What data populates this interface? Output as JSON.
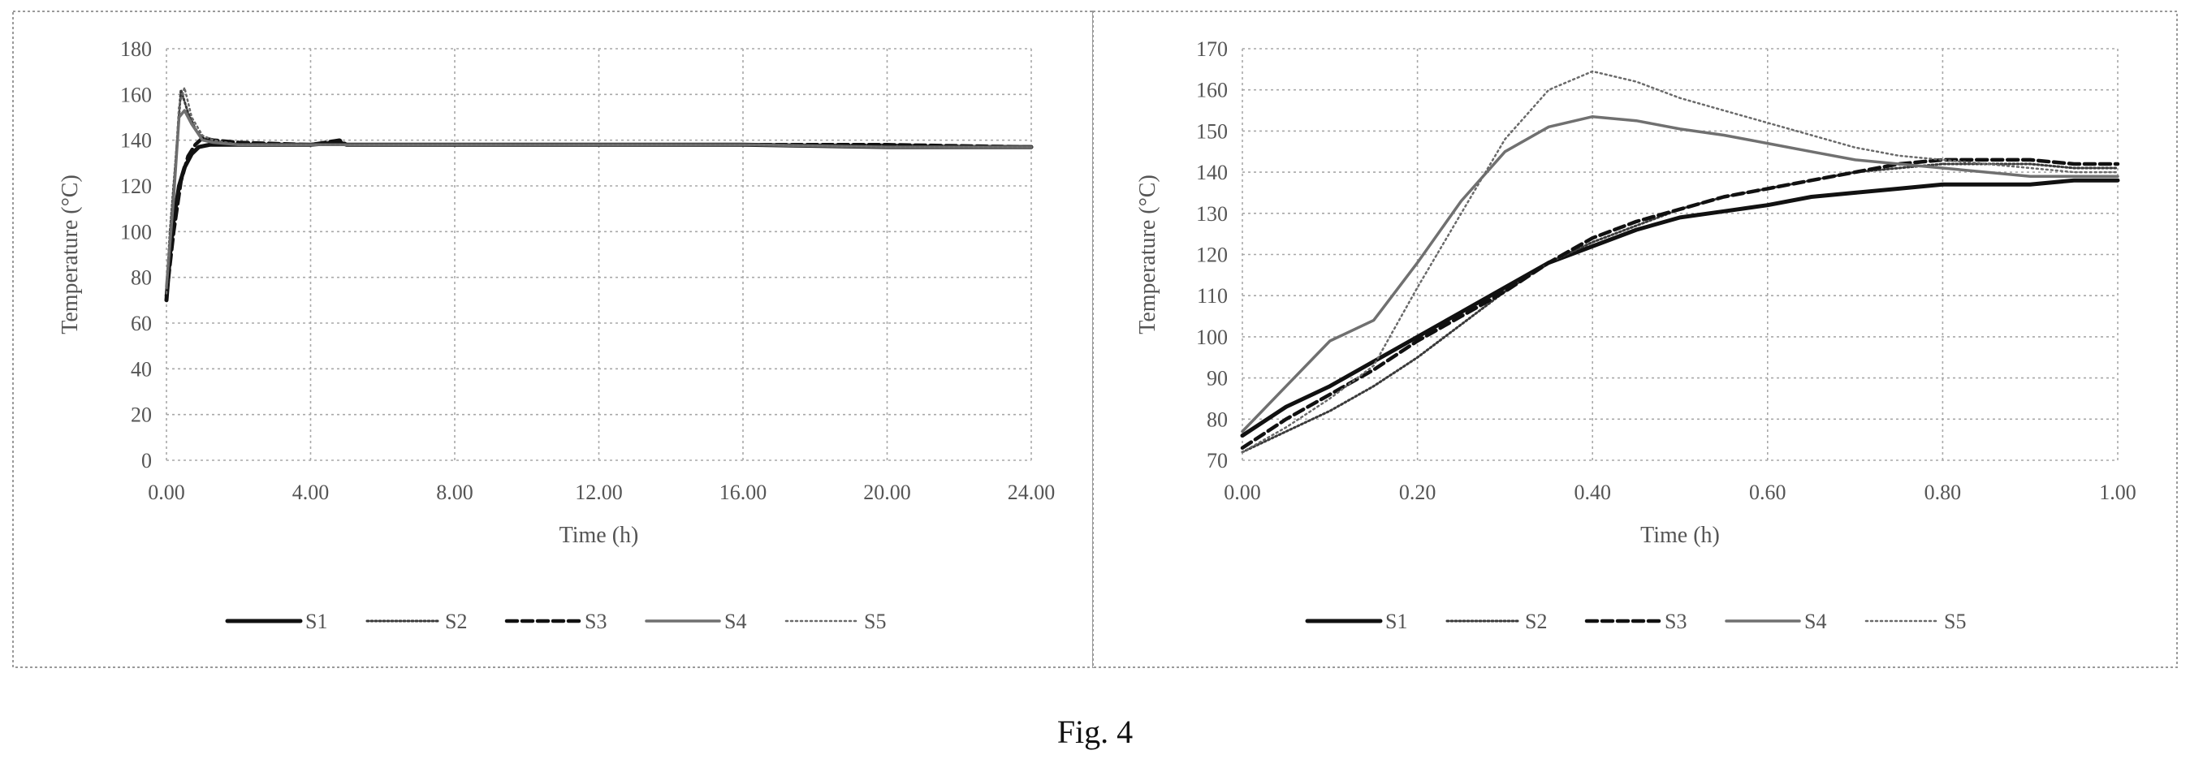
{
  "caption": "Fig. 4",
  "legend_styles": {
    "S1": "s1",
    "S2": "s2",
    "S3": "s3",
    "S4": "s4",
    "S5": "s5"
  },
  "chart_data": [
    {
      "type": "line",
      "title": "",
      "xlabel": "Time (h)",
      "ylabel": "Temperature (°C)",
      "xlim": [
        0,
        24
      ],
      "ylim": [
        0,
        180
      ],
      "xticks": [
        0,
        4,
        8,
        12,
        16,
        20,
        24
      ],
      "xtick_labels": [
        "0.00",
        "4.00",
        "8.00",
        "12.00",
        "16.00",
        "20.00",
        "24.00"
      ],
      "yticks": [
        0,
        20,
        40,
        60,
        80,
        100,
        120,
        140,
        160,
        180
      ],
      "ytick_labels": [
        "0",
        "20",
        "40",
        "60",
        "80",
        "100",
        "120",
        "140",
        "160",
        "180"
      ],
      "grid": true,
      "legend_position": "bottom",
      "series": [
        {
          "name": "S1",
          "x": [
            0,
            0.1,
            0.2,
            0.35,
            0.5,
            0.7,
            0.9,
            1.2,
            2,
            4,
            4.8,
            5,
            8,
            12,
            16,
            20,
            24
          ],
          "y": [
            70,
            90,
            105,
            120,
            128,
            134,
            137,
            138,
            138,
            138,
            139,
            138,
            138,
            138,
            138,
            137,
            137
          ]
        },
        {
          "name": "S2",
          "x": [
            0,
            0.1,
            0.25,
            0.4,
            0.6,
            0.8,
            1.0,
            1.3,
            2,
            4,
            8,
            12,
            16,
            20,
            24
          ],
          "y": [
            74,
            100,
            130,
            162,
            152,
            145,
            141,
            139,
            138,
            138,
            138,
            138,
            138,
            138,
            137
          ]
        },
        {
          "name": "S3",
          "x": [
            0,
            0.2,
            0.4,
            0.6,
            0.8,
            1.0,
            1.3,
            2,
            4,
            4.8,
            5,
            8,
            12,
            16,
            20,
            24
          ],
          "y": [
            72,
            100,
            122,
            133,
            138,
            141,
            140,
            139,
            138,
            140,
            138,
            138,
            138,
            138,
            138,
            137
          ]
        },
        {
          "name": "S4",
          "x": [
            0,
            0.2,
            0.35,
            0.5,
            0.7,
            1.0,
            1.3,
            2,
            4,
            8,
            12,
            16,
            20,
            24
          ],
          "y": [
            76,
            115,
            150,
            153,
            147,
            140,
            139,
            138,
            138,
            138,
            138,
            138,
            137,
            137
          ]
        },
        {
          "name": "S5",
          "x": [
            0,
            0.2,
            0.35,
            0.5,
            0.7,
            1.0,
            1.3,
            2,
            4,
            8,
            12,
            16,
            20,
            24
          ],
          "y": [
            73,
            118,
            155,
            163,
            150,
            142,
            140,
            138,
            138,
            138,
            138,
            138,
            137,
            137
          ]
        }
      ]
    },
    {
      "type": "line",
      "title": "",
      "xlabel": "Time (h)",
      "ylabel": "Temperature (°C)",
      "xlim": [
        0,
        1
      ],
      "ylim": [
        70,
        170
      ],
      "xticks": [
        0,
        0.2,
        0.4,
        0.6,
        0.8,
        1.0
      ],
      "xtick_labels": [
        "0.00",
        "0.20",
        "0.40",
        "0.60",
        "0.80",
        "1.00"
      ],
      "yticks": [
        70,
        80,
        90,
        100,
        110,
        120,
        130,
        140,
        150,
        160,
        170
      ],
      "ytick_labels": [
        "70",
        "80",
        "90",
        "100",
        "110",
        "120",
        "130",
        "140",
        "150",
        "160",
        "170"
      ],
      "grid": true,
      "legend_position": "bottom",
      "series": [
        {
          "name": "S1",
          "x": [
            0,
            0.05,
            0.1,
            0.15,
            0.2,
            0.25,
            0.3,
            0.35,
            0.4,
            0.45,
            0.5,
            0.55,
            0.6,
            0.65,
            0.7,
            0.75,
            0.8,
            0.85,
            0.9,
            0.95,
            1.0
          ],
          "y": [
            76,
            83,
            88,
            94,
            100,
            106,
            112,
            118,
            122,
            126,
            129,
            130.5,
            132,
            134,
            135,
            136,
            137,
            137,
            137,
            138,
            138
          ]
        },
        {
          "name": "S2",
          "x": [
            0,
            0.05,
            0.1,
            0.15,
            0.2,
            0.25,
            0.3,
            0.35,
            0.4,
            0.45,
            0.5,
            0.55,
            0.6,
            0.65,
            0.7,
            0.75,
            0.8,
            0.85,
            0.9,
            0.95,
            1.0
          ],
          "y": [
            72,
            77,
            82,
            88,
            95,
            103,
            111,
            118,
            123,
            127,
            131,
            134,
            136,
            138,
            140,
            141,
            142,
            142,
            142,
            141,
            141
          ]
        },
        {
          "name": "S3",
          "x": [
            0,
            0.05,
            0.1,
            0.15,
            0.2,
            0.25,
            0.3,
            0.35,
            0.4,
            0.45,
            0.5,
            0.55,
            0.6,
            0.65,
            0.7,
            0.75,
            0.8,
            0.85,
            0.9,
            0.95,
            1.0
          ],
          "y": [
            73,
            80,
            86,
            92,
            99,
            105,
            111,
            118,
            124,
            128,
            131,
            134,
            136,
            138,
            140,
            142,
            143,
            143,
            143,
            142,
            142
          ]
        },
        {
          "name": "S4",
          "x": [
            0,
            0.05,
            0.1,
            0.15,
            0.2,
            0.25,
            0.3,
            0.35,
            0.4,
            0.45,
            0.5,
            0.55,
            0.6,
            0.65,
            0.7,
            0.75,
            0.8,
            0.85,
            0.9,
            0.95,
            1.0
          ],
          "y": [
            77,
            88,
            99,
            104,
            118,
            133,
            145,
            151,
            153.5,
            152.5,
            150.5,
            149,
            147,
            145,
            143,
            142,
            141,
            140,
            139,
            139,
            139
          ]
        },
        {
          "name": "S5",
          "x": [
            0,
            0.05,
            0.1,
            0.15,
            0.2,
            0.25,
            0.3,
            0.35,
            0.4,
            0.45,
            0.5,
            0.55,
            0.6,
            0.65,
            0.7,
            0.75,
            0.8,
            0.85,
            0.9,
            0.95,
            1.0
          ],
          "y": [
            72,
            78,
            85,
            93,
            112,
            130,
            148,
            160,
            164.5,
            162,
            158,
            155,
            152,
            149,
            146,
            144,
            143,
            142,
            141,
            140,
            140
          ]
        }
      ]
    }
  ]
}
